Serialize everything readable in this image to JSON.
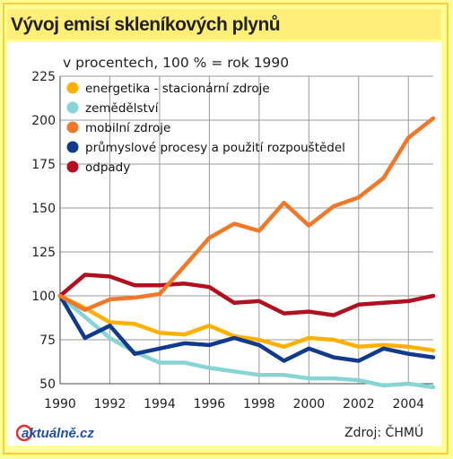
{
  "header": {
    "title": "Vývoj emisí skleníkových plynů"
  },
  "chart_data": {
    "type": "line",
    "title": "Vývoj emisí skleníkových plynů",
    "subtitle": "v procentech, 100 % = rok 1990",
    "x": [
      1990,
      1991,
      1992,
      1993,
      1994,
      1995,
      1996,
      1997,
      1998,
      1999,
      2000,
      2001,
      2002,
      2003,
      2004,
      2005
    ],
    "x_tick_labels": [
      "1990",
      "1992",
      "1994",
      "1996",
      "1998",
      "2000",
      "2002",
      "2004"
    ],
    "x_tick_values": [
      1990,
      1992,
      1994,
      1996,
      1998,
      2000,
      2002,
      2004
    ],
    "y_tick_labels": [
      "50",
      "75",
      "100",
      "125",
      "150",
      "175",
      "200",
      "225"
    ],
    "y_tick_values": [
      50,
      75,
      100,
      125,
      150,
      175,
      200,
      225
    ],
    "xlim": [
      1990,
      2005
    ],
    "ylim": [
      50,
      225
    ],
    "grid": true,
    "legend_position": "top-left",
    "series": [
      {
        "name": "energetika - stacionární zdroje",
        "color": "#ffb000",
        "values": [
          100,
          93,
          85,
          84,
          79,
          78,
          83,
          77,
          75,
          71,
          76,
          75,
          71,
          72,
          71,
          69
        ]
      },
      {
        "name": "zemědělství",
        "color": "#88d4d4",
        "values": [
          100,
          88,
          76,
          68,
          62,
          62,
          59,
          57,
          55,
          55,
          53,
          53,
          52,
          49,
          50,
          48
        ]
      },
      {
        "name": "mobilní zdroje",
        "color": "#f07828",
        "values": [
          100,
          92,
          98,
          99,
          101,
          117,
          133,
          141,
          137,
          153,
          140,
          151,
          156,
          167,
          190,
          201
        ]
      },
      {
        "name": "průmyslové procesy a použití rozpouštědel",
        "color": "#123a8c",
        "values": [
          100,
          76,
          83,
          67,
          70,
          73,
          72,
          76,
          72,
          63,
          70,
          65,
          63,
          70,
          67,
          65
        ]
      },
      {
        "name": "odpady",
        "color": "#b01020",
        "values": [
          100,
          112,
          111,
          106,
          106,
          107,
          105,
          96,
          97,
          90,
          91,
          89,
          95,
          96,
          97,
          100
        ]
      }
    ]
  },
  "footer": {
    "source": "Zdroj: ČHMÚ",
    "logo_text": "aktuálně.cz"
  }
}
